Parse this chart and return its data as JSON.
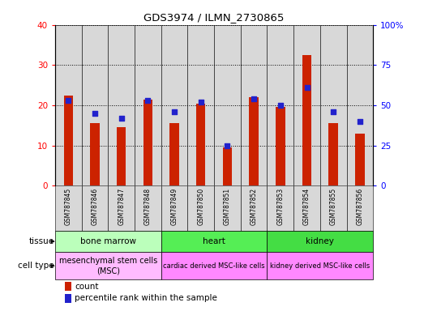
{
  "title": "GDS3974 / ILMN_2730865",
  "samples": [
    "GSM787845",
    "GSM787846",
    "GSM787847",
    "GSM787848",
    "GSM787849",
    "GSM787850",
    "GSM787851",
    "GSM787852",
    "GSM787853",
    "GSM787854",
    "GSM787855",
    "GSM787856"
  ],
  "counts": [
    22.5,
    15.5,
    14.5,
    21.5,
    15.5,
    20.5,
    9.5,
    22.0,
    19.5,
    32.5,
    15.5,
    13.0
  ],
  "percentiles": [
    53,
    45,
    42,
    53,
    46,
    52,
    25,
    54,
    50,
    61,
    46,
    40
  ],
  "ylim_left": [
    0,
    40
  ],
  "ylim_right": [
    0,
    100
  ],
  "yticks_left": [
    0,
    10,
    20,
    30,
    40
  ],
  "yticks_right": [
    0,
    25,
    50,
    75,
    100
  ],
  "bar_color": "#cc2200",
  "marker_color": "#2222cc",
  "col_bg_color": "#d8d8d8",
  "tissue_label": "tissue",
  "celltype_label": "cell type",
  "legend_count": "count",
  "legend_percentile": "percentile rank within the sample",
  "bar_width": 0.35,
  "tissue_groups": [
    {
      "label": "bone marrow",
      "start": 0,
      "end": 3,
      "color": "#bbffbb"
    },
    {
      "label": "heart",
      "start": 4,
      "end": 7,
      "color": "#55ee55"
    },
    {
      "label": "kidney",
      "start": 8,
      "end": 11,
      "color": "#44dd44"
    }
  ],
  "celltype_groups": [
    {
      "label": "mesenchymal stem cells\n(MSC)",
      "start": 0,
      "end": 3,
      "color": "#ffbbff",
      "fontsize": 7
    },
    {
      "label": "cardiac derived MSC-like cells",
      "start": 4,
      "end": 7,
      "color": "#ff88ff",
      "fontsize": 6
    },
    {
      "label": "kidney derived MSC-like cells",
      "start": 8,
      "end": 11,
      "color": "#ff88ff",
      "fontsize": 6
    }
  ]
}
